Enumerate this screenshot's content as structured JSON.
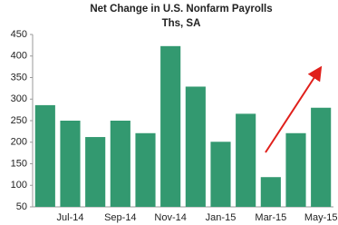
{
  "chart_data": {
    "type": "bar",
    "title": "Net Change in U.S. Nonfarm Payrolls",
    "subtitle": "Ths, SA",
    "categories": [
      null,
      "Jul-14",
      null,
      "Sep-14",
      null,
      "Nov-14",
      null,
      "Jan-15",
      null,
      "Mar-15",
      null,
      "May-15"
    ],
    "values": [
      286,
      250,
      212,
      250,
      221,
      423,
      329,
      201,
      266,
      119,
      221,
      280
    ],
    "color": "#339970",
    "ylim": [
      50,
      450
    ],
    "yticks": [
      50,
      100,
      150,
      200,
      250,
      300,
      350,
      400,
      450
    ],
    "grid": false
  }
}
